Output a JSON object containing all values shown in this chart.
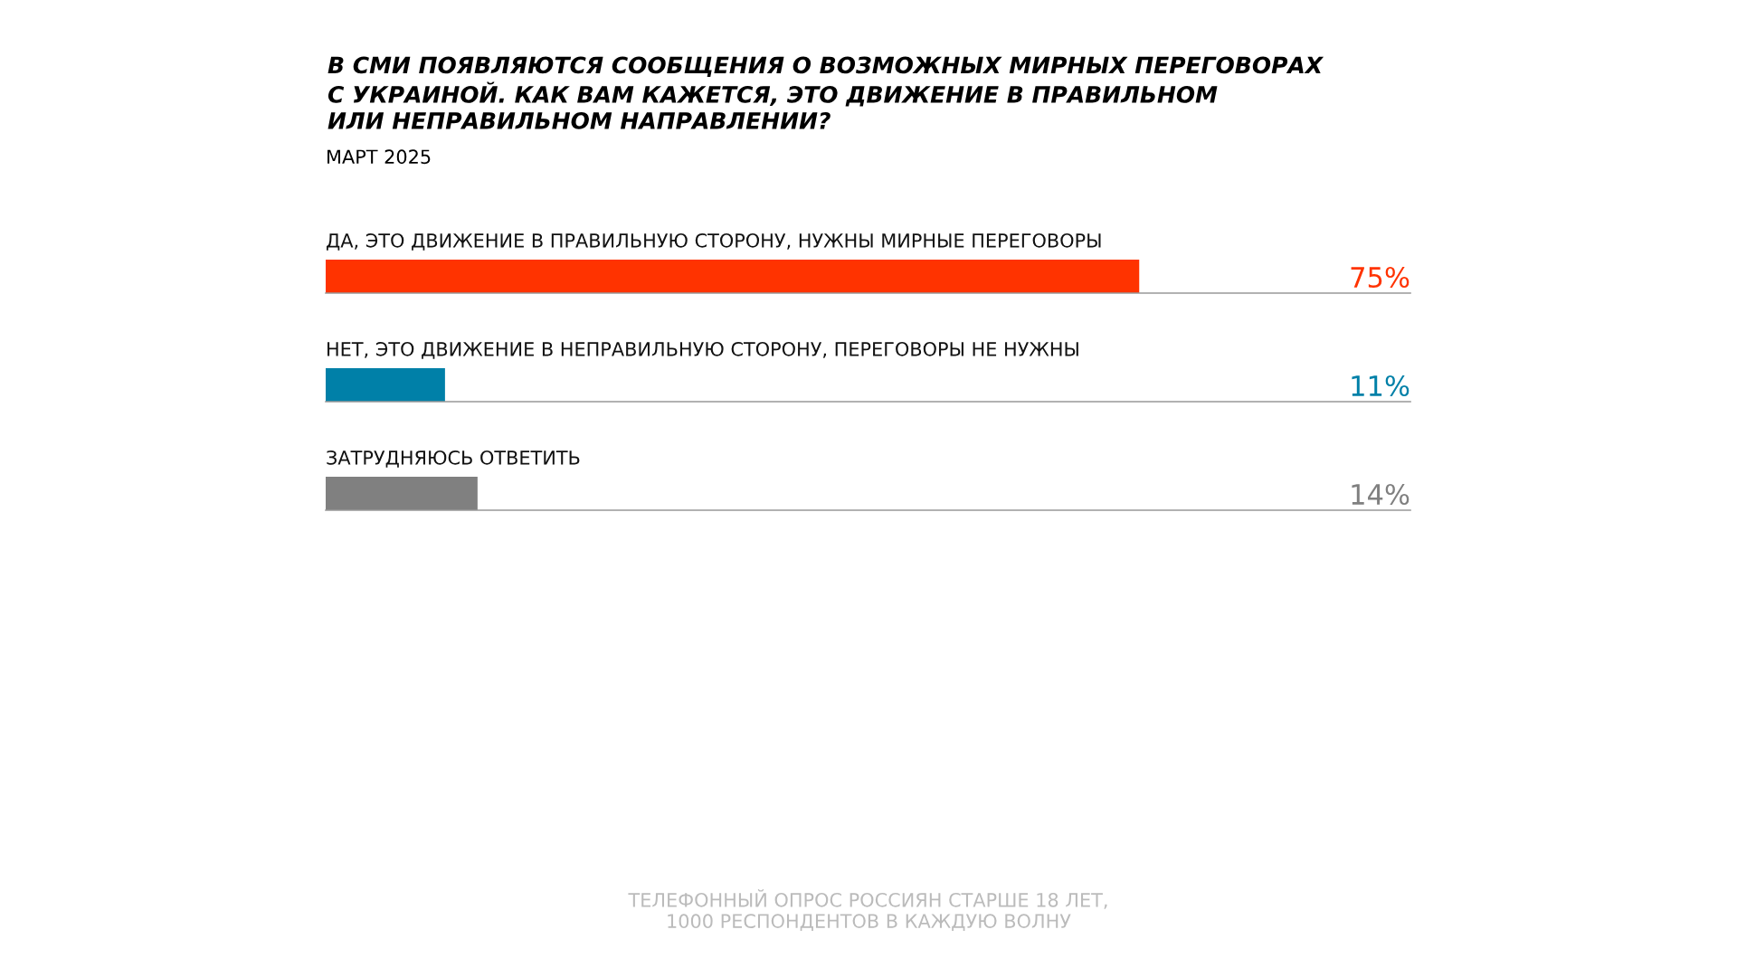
{
  "chart_data": {
    "type": "bar",
    "orientation": "horizontal",
    "title": "В СМИ ПОЯВЛЯЮТСЯ СООБЩЕНИЯ О ВОЗМОЖНЫХ МИРНЫХ ПЕРЕГОВОРАХ\nС УКРАИНОЙ. КАК ВАМ КАЖЕТСЯ, ЭТО ДВИЖЕНИЕ В ПРАВИЛЬНОМ\nИЛИ НЕПРАВИЛЬНОМ НАПРАВЛЕНИИ?",
    "subtitle": "МАРТ 2025",
    "categories": [
      "ДА, ЭТО ДВИЖЕНИЕ В ПРАВИЛЬНУЮ СТОРОНУ, НУЖНЫ МИРНЫЕ ПЕРЕГОВОРЫ",
      "НЕТ, ЭТО ДВИЖЕНИЕ В НЕПРАВИЛЬНУЮ СТОРОНУ, ПЕРЕГОВОРЫ НЕ НУЖНЫ",
      "ЗАТРУДНЯЮСЬ ОТВЕТИТЬ"
    ],
    "values": [
      75,
      11,
      14
    ],
    "colors": [
      "#ff3300",
      "#0080a8",
      "#808080"
    ],
    "value_labels": [
      "75%",
      "11%",
      "14%"
    ],
    "xlim": [
      0,
      100
    ],
    "annotations": [
      "ТЕЛЕФОННЫЙ ОПРОС РОССИЯН СТАРШЕ 18 ЛЕТ,\n1000 РЕСПОНДЕНТОВ В КАЖДУЮ ВОЛНУ"
    ]
  }
}
